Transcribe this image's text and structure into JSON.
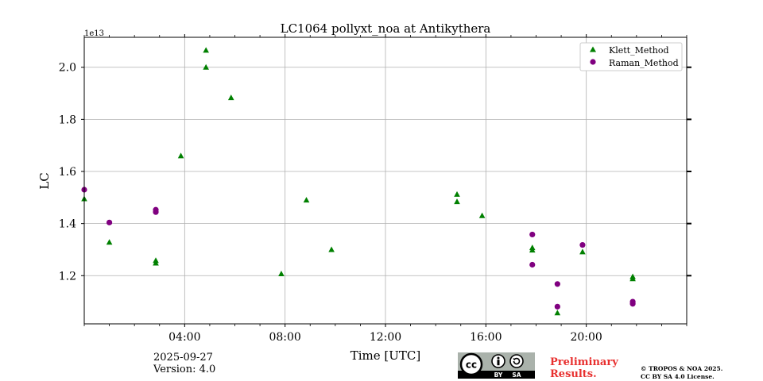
{
  "chart_data": {
    "type": "scatter",
    "title": "LC1064 pollyxt_noa at Antikythera",
    "xlabel": "Time [UTC]",
    "ylabel": "LC",
    "y_offset_label": "1e13",
    "xlim": [
      0,
      24
    ],
    "ylim": [
      1.015,
      2.115
    ],
    "xticks": [
      4,
      8,
      12,
      16,
      20
    ],
    "xtick_labels": [
      "04:00",
      "08:00",
      "12:00",
      "16:00",
      "20:00"
    ],
    "yticks": [
      1.2,
      1.4,
      1.6,
      1.8,
      2.0
    ],
    "ytick_labels": [
      "1.2",
      "1.4",
      "1.6",
      "1.8",
      "2.0"
    ],
    "grid": true,
    "legend_position": "top-right",
    "series": [
      {
        "name": "Klett_Method",
        "marker": "triangle",
        "color": "#008000",
        "x": [
          0.0,
          1.0,
          2.85,
          2.85,
          3.85,
          4.85,
          4.85,
          5.85,
          7.85,
          8.85,
          9.85,
          14.85,
          14.85,
          15.85,
          17.85,
          17.85,
          18.85,
          19.85,
          21.85,
          21.85
        ],
        "y": [
          1.495,
          1.328,
          1.258,
          1.248,
          1.66,
          2.065,
          2.0,
          1.883,
          1.207,
          1.49,
          1.3,
          1.512,
          1.484,
          1.43,
          1.307,
          1.298,
          1.057,
          1.291,
          1.196,
          1.188
        ]
      },
      {
        "name": "Raman_Method",
        "marker": "circle",
        "color": "#800080",
        "x": [
          0.0,
          1.0,
          2.85,
          2.85,
          17.85,
          17.85,
          18.85,
          18.85,
          19.85,
          21.85,
          21.85
        ],
        "y": [
          1.53,
          1.404,
          1.453,
          1.444,
          1.358,
          1.242,
          1.168,
          1.081,
          1.318,
          1.1,
          1.092
        ]
      }
    ]
  },
  "footer": {
    "date": "2025-09-27",
    "version": "Version: 4.0",
    "preliminary_line1": "Preliminary",
    "preliminary_line2": "Results.",
    "copyright_line1": "© TROPOS & NOA 2025.",
    "copyright_line2": "CC BY SA 4.0 License.",
    "license_badge": {
      "cc": "cc",
      "by": "BY",
      "sa": "SA"
    }
  },
  "colors": {
    "grid": "#b0b0b0",
    "klett": "#008000",
    "raman": "#800080",
    "preliminary": "#e8302f"
  }
}
